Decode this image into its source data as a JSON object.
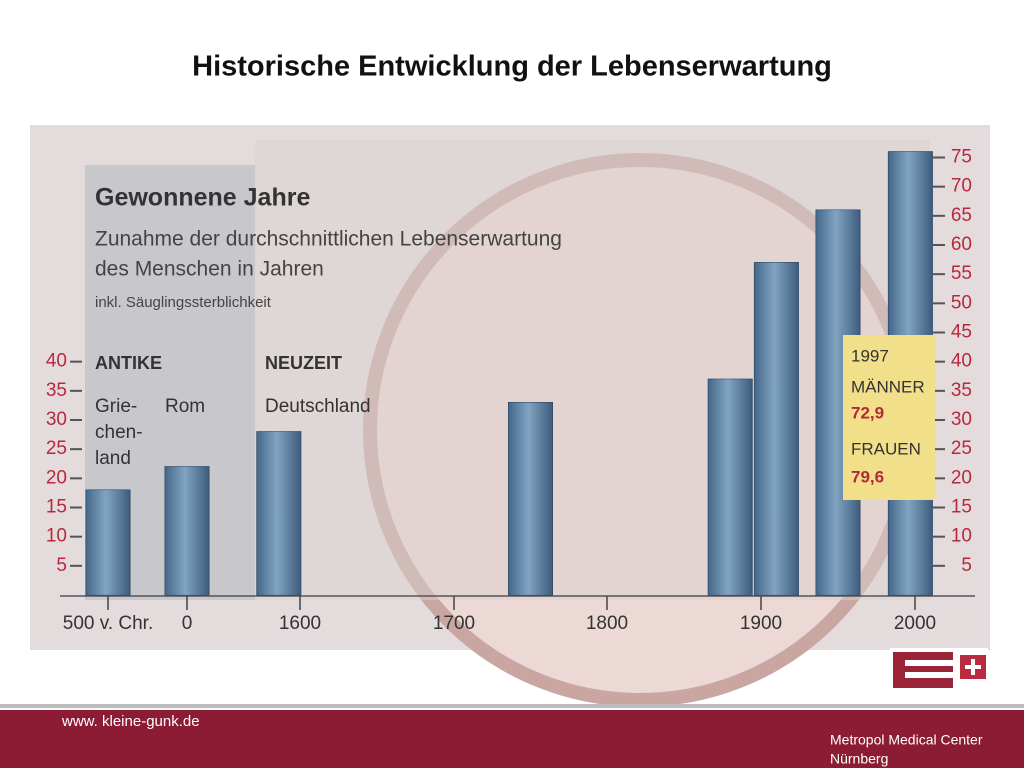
{
  "slide": {
    "title": "Historische Entwicklung der Lebenserwartung",
    "url": "www. kleine-gunk.de",
    "org": "Metropol Medical Center",
    "city": "Nürnberg"
  },
  "chart_data": {
    "type": "bar",
    "title": "Gewonnene Jahre",
    "subtitle": [
      "Zunahme der durchschnittlichen Lebenserwartung",
      "des Menschen in Jahren"
    ],
    "note": "inkl. Säuglingssterblichkeit",
    "region_labels": [
      "ANTIKE",
      "NEUZEIT"
    ],
    "bar_labels": [
      [
        "Grie-",
        "chen-",
        "land"
      ],
      [
        "Rom"
      ],
      [
        "Deutschland"
      ]
    ],
    "annotations": [
      "1997",
      "MÄNNER",
      "72,9",
      "FRAUEN",
      "79,6"
    ],
    "x": [
      -500,
      0,
      1300,
      1750,
      1880,
      1910,
      1950,
      1997
    ],
    "values": [
      18,
      22,
      28,
      33,
      37,
      57,
      66,
      76
    ],
    "color": "#5b82a8",
    "xticks": [
      {
        "value": -500,
        "label": "500 v. Chr."
      },
      0,
      1600,
      1700,
      1800,
      1900,
      2000
    ],
    "ylim": [
      0,
      78
    ],
    "yticks": [
      5,
      10,
      15,
      20,
      25,
      30,
      35,
      40,
      45,
      50,
      55,
      60,
      65,
      70,
      75
    ],
    "y2lim": [
      0,
      78
    ],
    "y2ticks": [
      5,
      10,
      15,
      20,
      25,
      30,
      35,
      40
    ]
  }
}
